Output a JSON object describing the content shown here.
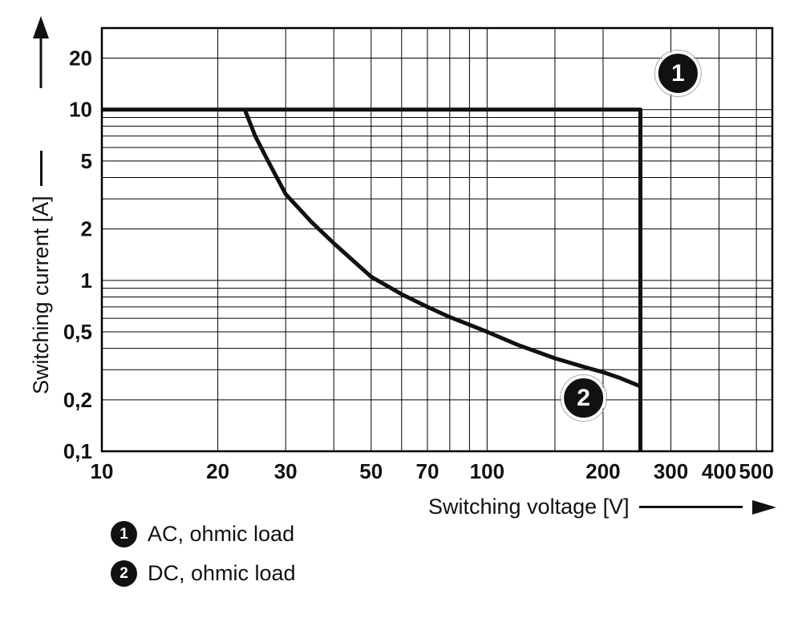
{
  "chart_data": {
    "type": "line",
    "title": "",
    "grid": true,
    "line_color": "#111111",
    "x_axis": {
      "label": "Switching voltage [V]",
      "scale": "log",
      "min": 10,
      "max": 550,
      "ticks": [
        10,
        20,
        30,
        50,
        70,
        100,
        200,
        300,
        400,
        500
      ],
      "tick_labels": [
        "10",
        "20",
        "30",
        "50",
        "70",
        "100",
        "200",
        "300",
        "400",
        "500"
      ],
      "minor_gridlines": [
        40,
        60,
        80,
        90,
        150
      ]
    },
    "y_axis": {
      "label": "Switching current [A]",
      "scale": "log",
      "min": 0.1,
      "max": 30,
      "ticks": [
        20,
        10,
        5,
        2,
        1,
        0.5,
        0.2,
        0.1
      ],
      "tick_labels": [
        "20",
        "10",
        "5",
        "2",
        "1",
        "0,5",
        "0,2",
        "0,1"
      ],
      "minor_gridlines": [
        0.3,
        0.4,
        0.6,
        0.7,
        0.8,
        0.9,
        3,
        4,
        6,
        7,
        8,
        9
      ]
    },
    "series": [
      {
        "name": "AC, ohmic load",
        "marker": "1",
        "points": [
          [
            10,
            10
          ],
          [
            250,
            10
          ],
          [
            250,
            0.1
          ]
        ]
      },
      {
        "name": "DC, ohmic load",
        "marker": "2",
        "points": [
          [
            23.5,
            10
          ],
          [
            25,
            7
          ],
          [
            27,
            5
          ],
          [
            30,
            3.2
          ],
          [
            35,
            2.2
          ],
          [
            40,
            1.65
          ],
          [
            45,
            1.3
          ],
          [
            50,
            1.05
          ],
          [
            60,
            0.83
          ],
          [
            70,
            0.7
          ],
          [
            80,
            0.61
          ],
          [
            90,
            0.55
          ],
          [
            100,
            0.5
          ],
          [
            120,
            0.42
          ],
          [
            150,
            0.35
          ],
          [
            180,
            0.31
          ],
          [
            200,
            0.29
          ],
          [
            220,
            0.27
          ],
          [
            250,
            0.24
          ]
        ]
      }
    ],
    "annotations": [
      {
        "text": "1",
        "v": 313,
        "a": 16.3
      },
      {
        "text": "2",
        "v": 178,
        "a": 0.205
      }
    ]
  },
  "legend": {
    "items": [
      {
        "num": "1",
        "label": "AC, ohmic load"
      },
      {
        "num": "2",
        "label": "DC, ohmic load"
      }
    ]
  }
}
